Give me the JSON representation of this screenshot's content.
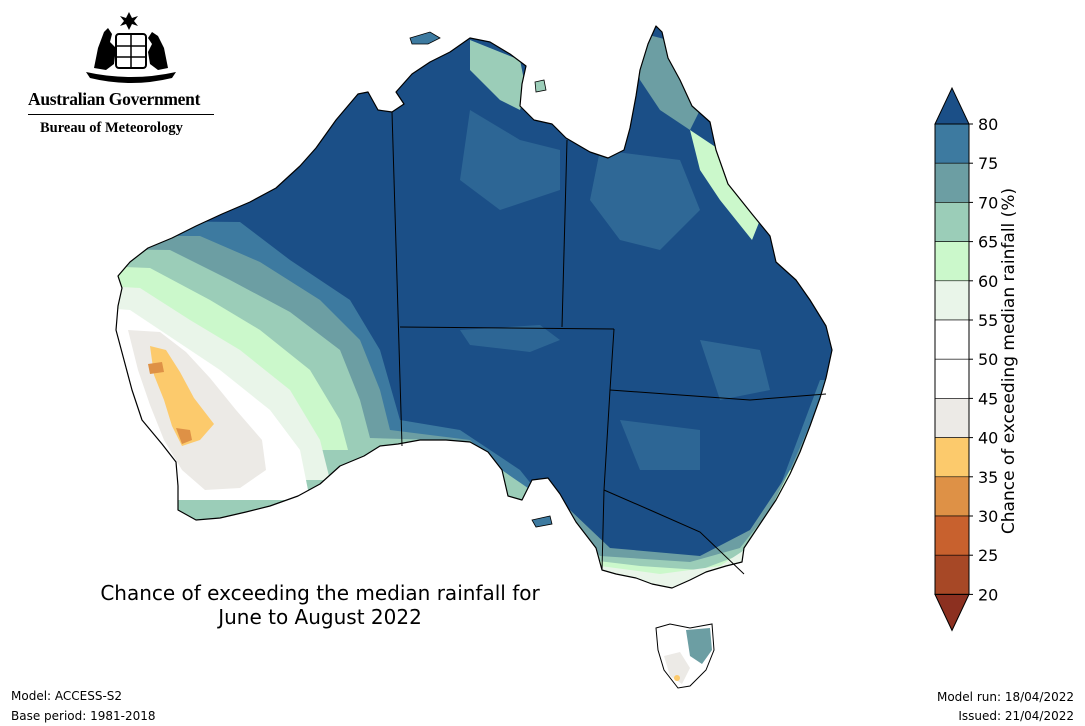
{
  "header": {
    "gov_name": "Australian Government",
    "bureau_name": "Bureau of Meteorology"
  },
  "map": {
    "title_line1": "Chance of exceeding the median rainfall for",
    "title_line2": "June to August 2022",
    "colors": {
      "ocean": "#ffffff",
      "outline": "#000000"
    }
  },
  "legend": {
    "title": "Chance of exceeding median rainfall (%)",
    "bins": [
      {
        "from": 80,
        "to": null,
        "color": "#1b4f87"
      },
      {
        "from": 75,
        "to": 80,
        "color": "#3d7aa0"
      },
      {
        "from": 70,
        "to": 75,
        "color": "#6c9ea3"
      },
      {
        "from": 65,
        "to": 70,
        "color": "#9bcdb8"
      },
      {
        "from": 60,
        "to": 65,
        "color": "#cbf8cb"
      },
      {
        "from": 55,
        "to": 60,
        "color": "#e9f5e9"
      },
      {
        "from": 50,
        "to": 55,
        "color": "#ffffff"
      },
      {
        "from": 45,
        "to": 50,
        "color": "#ffffff"
      },
      {
        "from": 40,
        "to": 45,
        "color": "#eceae6"
      },
      {
        "from": 35,
        "to": 40,
        "color": "#fcca6c"
      },
      {
        "from": 30,
        "to": 35,
        "color": "#de9146"
      },
      {
        "from": 25,
        "to": 30,
        "color": "#c8612e"
      },
      {
        "from": 20,
        "to": 25,
        "color": "#a74826"
      },
      {
        "from": null,
        "to": 20,
        "color": "#8c3020"
      }
    ],
    "ticks": [
      "80",
      "75",
      "70",
      "65",
      "60",
      "55",
      "50",
      "45",
      "40",
      "35",
      "30",
      "25",
      "20"
    ]
  },
  "footer": {
    "model": "Model: ACCESS-S2",
    "base_period": "Base period: 1981-2018",
    "model_run": "Model run: 18/04/2022",
    "issued": "Issued: 21/04/2022"
  }
}
